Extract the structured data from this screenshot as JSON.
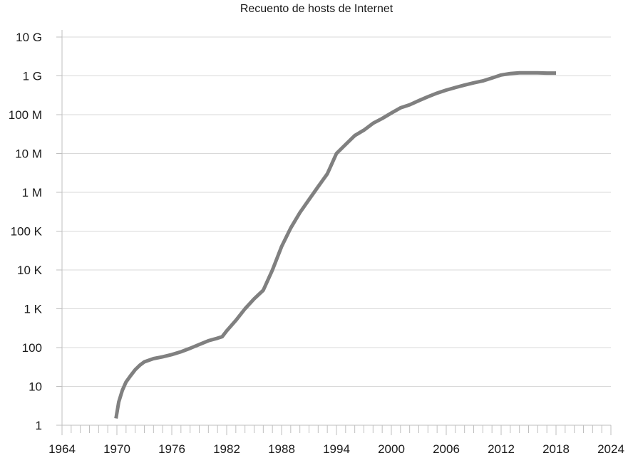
{
  "chart_data": {
    "type": "line",
    "title": "Recuento de hosts de Internet",
    "xlabel": "",
    "ylabel": "",
    "xlim": [
      1964,
      2024
    ],
    "x_ticks": [
      1964,
      1970,
      1976,
      1982,
      1988,
      1994,
      2000,
      2006,
      2012,
      2018,
      2024
    ],
    "x_tick_labels": [
      "1964",
      "1970",
      "1976",
      "1982",
      "1988",
      "1994",
      "2000",
      "2006",
      "2012",
      "2018",
      "2024"
    ],
    "y_scale": "log",
    "ylim": [
      1,
      10000000000
    ],
    "y_ticks": [
      1,
      10,
      100,
      1000,
      10000,
      100000,
      1000000,
      10000000,
      100000000,
      1000000000,
      10000000000
    ],
    "y_tick_labels": [
      "1",
      "10",
      "100",
      "1 K",
      "10 K",
      "100 K",
      "1 M",
      "10 M",
      "100 M",
      "1 G",
      "10 G"
    ],
    "grid": "horizontal",
    "series": [
      {
        "color": "#808080",
        "x": [
          1969.9,
          1970.2,
          1970.6,
          1971,
          1971.5,
          1972,
          1972.5,
          1973,
          1974,
          1975,
          1976,
          1977,
          1978,
          1979,
          1980,
          1981,
          1981.5,
          1982,
          1983,
          1984,
          1985,
          1986,
          1987,
          1987.5,
          1988,
          1989,
          1990,
          1991,
          1992,
          1993,
          1994,
          1995,
          1996,
          1997,
          1998,
          1999,
          2000,
          2001,
          2002,
          2003,
          2004,
          2005,
          2006,
          2007,
          2008,
          2009,
          2010,
          2011,
          2012,
          2013,
          2014,
          2015,
          2016,
          2017,
          2018
        ],
        "y": [
          1.5,
          4,
          8,
          13,
          19,
          27,
          35,
          43,
          52,
          58,
          66,
          78,
          96,
          120,
          150,
          175,
          190,
          270,
          500,
          1000,
          1800,
          3000,
          10000,
          20000,
          40000,
          120000,
          300000,
          650000,
          1400000,
          3000000,
          10000000,
          17000000,
          29000000,
          40000000,
          60000000,
          80000000,
          110000000,
          150000000,
          180000000,
          230000000,
          290000000,
          360000000,
          430000000,
          500000000,
          580000000,
          660000000,
          740000000,
          880000000,
          1050000000,
          1150000000,
          1200000000,
          1200000000,
          1200000000,
          1180000000,
          1180000000
        ]
      }
    ]
  }
}
